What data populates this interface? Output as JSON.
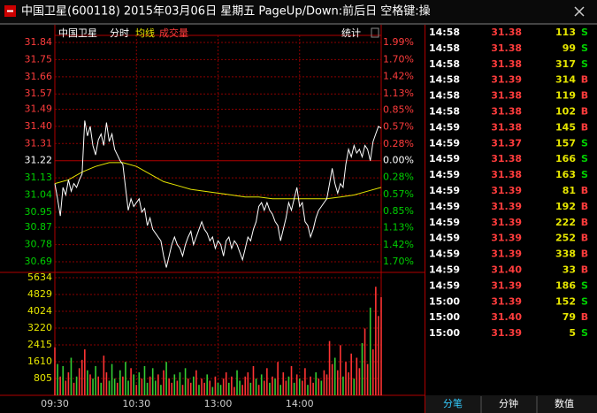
{
  "window_title": "中国卫星(600118) 2015年03月06日 星期五 PageUp/Down:前后日 空格键:操",
  "chart_data": {
    "type": "line",
    "header": [
      "中国卫星",
      "分时",
      "均线",
      "成交量"
    ],
    "stats_label": "统计",
    "xlim": [
      0,
      240
    ],
    "xticks": [
      {
        "value": 0,
        "label": "09:30"
      },
      {
        "value": 60,
        "label": "10:30"
      },
      {
        "value": 120,
        "label": "13:00"
      },
      {
        "value": 180,
        "label": "14:00"
      }
    ],
    "ylim": [
      30.69,
      31.84
    ],
    "yticks": [
      31.84,
      31.75,
      31.66,
      31.57,
      31.49,
      {
        "value": 31.4,
        "label": "31.40"
      },
      31.31,
      31.22,
      31.13,
      31.04,
      30.95,
      30.87,
      30.78,
      30.69
    ],
    "y2lim": [
      -1.7,
      1.99
    ],
    "y2ticks": [
      {
        "value": 1.99,
        "label": "1.99%"
      },
      {
        "value": 1.7,
        "label": "1.70%"
      },
      {
        "value": 1.42,
        "label": "1.42%"
      },
      {
        "value": 1.13,
        "label": "1.13%"
      },
      {
        "value": 0.85,
        "label": "0.85%"
      },
      {
        "value": 0.57,
        "label": "0.57%"
      },
      {
        "value": 0.28,
        "label": "0.28%"
      },
      {
        "value": 0,
        "label": "0.00%"
      },
      {
        "value": -0.28,
        "label": "0.28%"
      },
      {
        "value": -0.57,
        "label": "0.57%"
      },
      {
        "value": -0.85,
        "label": "0.85%"
      },
      {
        "value": -1.13,
        "label": "1.13%"
      },
      {
        "value": -1.42,
        "label": "1.42%"
      },
      {
        "value": -1.7,
        "label": "1.70%"
      }
    ],
    "grid": true,
    "up_color": "#ff3c3c",
    "down_color": "#00d000",
    "flat_color": "#ffffff",
    "x": [
      0,
      2,
      4,
      6,
      8,
      10,
      12,
      14,
      16,
      18,
      20,
      22,
      24,
      26,
      28,
      30,
      32,
      34,
      36,
      38,
      40,
      42,
      44,
      46,
      48,
      50,
      52,
      54,
      56,
      58,
      60,
      62,
      64,
      66,
      68,
      70,
      72,
      74,
      76,
      78,
      80,
      82,
      84,
      86,
      88,
      90,
      92,
      94,
      96,
      98,
      100,
      102,
      104,
      106,
      108,
      110,
      112,
      114,
      116,
      118,
      120,
      122,
      124,
      126,
      128,
      130,
      132,
      134,
      136,
      138,
      140,
      142,
      144,
      146,
      148,
      150,
      152,
      154,
      156,
      158,
      160,
      162,
      164,
      166,
      168,
      170,
      172,
      174,
      176,
      178,
      180,
      182,
      184,
      186,
      188,
      190,
      192,
      194,
      196,
      198,
      200,
      202,
      204,
      206,
      208,
      210,
      212,
      214,
      216,
      218,
      220,
      222,
      224,
      226,
      228,
      230,
      232,
      234,
      236,
      238,
      240
    ],
    "series": [
      {
        "color": "#ffffff",
        "values": [
          31.1,
          31.02,
          30.93,
          31.08,
          31.04,
          31.12,
          31.06,
          31.1,
          31.08,
          31.12,
          31.15,
          31.43,
          31.35,
          31.4,
          31.3,
          31.25,
          31.33,
          31.36,
          31.3,
          31.42,
          31.32,
          31.36,
          31.28,
          31.25,
          31.22,
          31.2,
          31.08,
          30.96,
          31.02,
          30.98,
          31.0,
          31.02,
          30.95,
          30.97,
          30.88,
          30.92,
          30.86,
          30.84,
          30.82,
          30.8,
          30.72,
          30.66,
          30.72,
          30.78,
          30.82,
          30.78,
          30.76,
          30.72,
          30.78,
          30.82,
          30.85,
          30.78,
          30.82,
          30.86,
          30.9,
          30.86,
          30.84,
          30.8,
          30.82,
          30.76,
          30.8,
          30.78,
          30.72,
          30.8,
          30.82,
          30.76,
          30.8,
          30.78,
          30.74,
          30.7,
          30.76,
          30.82,
          30.8,
          30.86,
          30.9,
          30.98,
          31.0,
          30.96,
          31.0,
          30.96,
          30.94,
          30.9,
          30.88,
          30.8,
          30.86,
          30.92,
          31.0,
          30.96,
          31.02,
          31.08,
          30.98,
          31.0,
          30.9,
          30.88,
          30.82,
          30.86,
          30.92,
          30.96,
          30.98,
          31.0,
          31.02,
          31.1,
          31.18,
          31.1,
          31.05,
          31.1,
          31.08,
          31.2,
          31.28,
          31.24,
          31.3,
          31.26,
          31.28,
          31.24,
          31.3,
          31.28,
          31.22,
          31.32,
          31.36,
          31.4,
          31.39
        ]
      },
      {
        "color": "#e6e600",
        "x": [
          0,
          10,
          20,
          30,
          40,
          50,
          60,
          70,
          80,
          90,
          100,
          110,
          120,
          130,
          140,
          150,
          160,
          170,
          180,
          190,
          200,
          210,
          220,
          230,
          240
        ],
        "values": [
          31.1,
          31.12,
          31.16,
          31.19,
          31.21,
          31.21,
          31.19,
          31.15,
          31.11,
          31.09,
          31.07,
          31.06,
          31.05,
          31.04,
          31.03,
          31.03,
          31.02,
          31.02,
          31.02,
          31.02,
          31.02,
          31.03,
          31.04,
          31.06,
          31.08
        ]
      }
    ],
    "volume": {
      "ylim": [
        0,
        5634
      ],
      "yticks": [
        5634,
        4829,
        4024,
        3220,
        2415,
        1610,
        805
      ],
      "tick_color": "#e6e600",
      "values": [
        2300,
        1500,
        900,
        1400,
        700,
        1100,
        1800,
        600,
        900,
        1300,
        1700,
        2200,
        1200,
        1000,
        800,
        1400,
        900,
        600,
        1900,
        1100,
        700,
        1500,
        800,
        600,
        1200,
        900,
        1600,
        700,
        1300,
        1000,
        500,
        1100,
        800,
        1400,
        600,
        900,
        1300,
        700,
        1000,
        500,
        1200,
        1600,
        800,
        600,
        1000,
        700,
        1100,
        500,
        1300,
        800,
        600,
        900,
        1200,
        500,
        800,
        600,
        1000,
        700,
        400,
        900,
        600,
        500,
        800,
        1100,
        600,
        900,
        400,
        1200,
        700,
        500,
        900,
        1100,
        600,
        1400,
        800,
        500,
        1000,
        700,
        1300,
        600,
        900,
        800,
        1600,
        500,
        1100,
        700,
        900,
        1400,
        600,
        1000,
        800,
        700,
        1300,
        500,
        900,
        600,
        1100,
        800,
        700,
        1200,
        1000,
        2600,
        1500,
        1800,
        1200,
        2400,
        900,
        1600,
        1100,
        2000,
        800,
        1800,
        1300,
        2500,
        3200,
        1500,
        4200,
        2200,
        5200,
        3800,
        4700
      ],
      "colors": [
        "#f33",
        "#3c3",
        "#f33",
        "#3c3",
        "#f33",
        "#f33",
        "#3c3",
        "#f33",
        "#3c3",
        "#f33",
        "#f33",
        "#f33",
        "#3c3",
        "#f33",
        "#3c3",
        "#3c3",
        "#f33",
        "#3c3",
        "#f33",
        "#f33",
        "#3c3",
        "#3c3",
        "#3c3",
        "#f33",
        "#3c3",
        "#f33",
        "#3c3",
        "#3c3",
        "#f33",
        "#3c3",
        "#f33",
        "#3c3",
        "#f33",
        "#3c3",
        "#3c3",
        "#f33",
        "#3c3",
        "#3c3",
        "#f33",
        "#3c3",
        "#f33",
        "#3c3",
        "#f33",
        "#f33",
        "#3c3",
        "#f33",
        "#3c3",
        "#f33",
        "#3c3",
        "#f33",
        "#f33",
        "#3c3",
        "#f33",
        "#3c3",
        "#f33",
        "#f33",
        "#3c3",
        "#f33",
        "#3c3",
        "#f33",
        "#3c3",
        "#3c3",
        "#f33",
        "#f33",
        "#3c3",
        "#f33",
        "#f33",
        "#3c3",
        "#3c3",
        "#f33",
        "#f33",
        "#f33",
        "#3c3",
        "#f33",
        "#3c3",
        "#f33",
        "#3c3",
        "#f33",
        "#f33",
        "#3c3",
        "#f33",
        "#3c3",
        "#f33",
        "#3c3",
        "#f33",
        "#f33",
        "#3c3",
        "#f33",
        "#3c3",
        "#f33",
        "#3c3",
        "#f33",
        "#f33",
        "#3c3",
        "#f33",
        "#f33",
        "#3c3",
        "#f33",
        "#3c3",
        "#f33",
        "#f33",
        "#f33",
        "#f33",
        "#3c3",
        "#f33",
        "#f33",
        "#3c3",
        "#f33",
        "#f33",
        "#f33",
        "#3c3",
        "#f33",
        "#f33",
        "#3c3",
        "#f33",
        "#f33",
        "#3c3",
        "#f33",
        "#f33",
        "#f33",
        "#f33"
      ]
    }
  },
  "trades": {
    "rows": [
      [
        "14:58",
        "31.38",
        "113",
        "S"
      ],
      [
        "14:58",
        "31.38",
        "99",
        "S"
      ],
      [
        "14:58",
        "31.38",
        "317",
        "S"
      ],
      [
        "14:58",
        "31.39",
        "314",
        "B"
      ],
      [
        "14:58",
        "31.38",
        "119",
        "B"
      ],
      [
        "14:58",
        "31.38",
        "102",
        "B"
      ],
      [
        "14:59",
        "31.38",
        "145",
        "B"
      ],
      [
        "14:59",
        "31.37",
        "157",
        "S"
      ],
      [
        "14:59",
        "31.38",
        "166",
        "S"
      ],
      [
        "14:59",
        "31.38",
        "163",
        "S"
      ],
      [
        "14:59",
        "31.39",
        "81",
        "B"
      ],
      [
        "14:59",
        "31.39",
        "192",
        "B"
      ],
      [
        "14:59",
        "31.39",
        "222",
        "B"
      ],
      [
        "14:59",
        "31.39",
        "252",
        "B"
      ],
      [
        "14:59",
        "31.39",
        "338",
        "B"
      ],
      [
        "14:59",
        "31.40",
        "33",
        "B"
      ],
      [
        "14:59",
        "31.39",
        "186",
        "S"
      ],
      [
        "15:00",
        "31.39",
        "152",
        "S"
      ],
      [
        "15:00",
        "31.40",
        "79",
        "B"
      ],
      [
        "15:00",
        "31.39",
        "5",
        "S"
      ]
    ]
  },
  "tabs": [
    "分笔",
    "分钟",
    "数值"
  ]
}
